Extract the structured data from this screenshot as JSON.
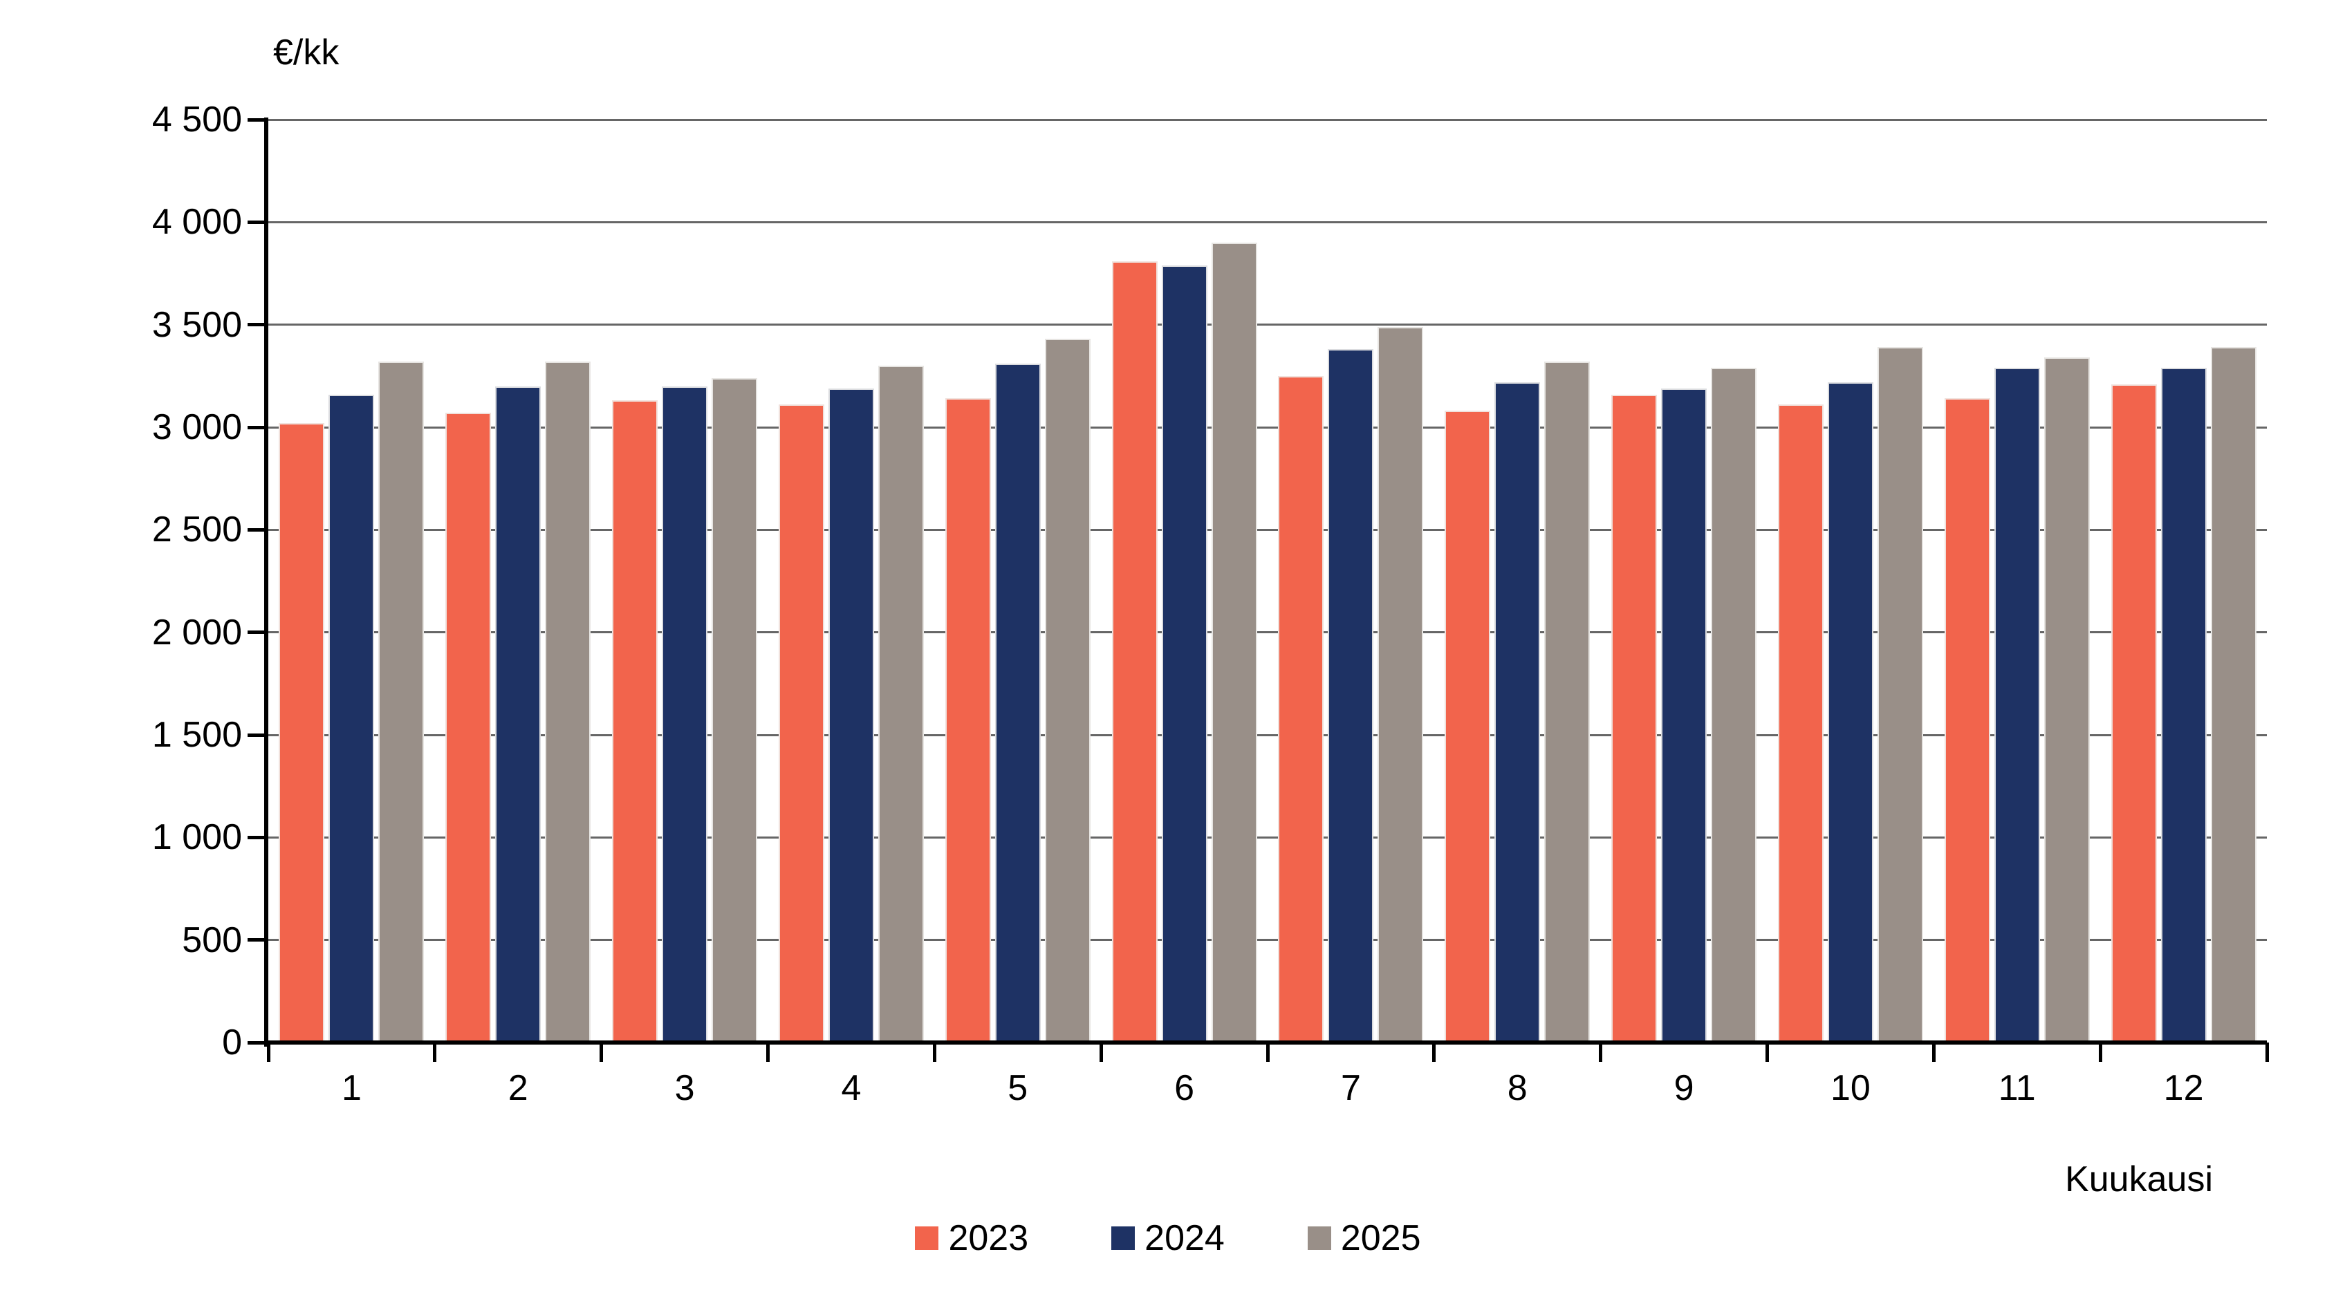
{
  "chart_data": {
    "type": "bar",
    "title": "",
    "ylabel": "€/kk",
    "xlabel": "Kuukausi",
    "categories": [
      "1",
      "2",
      "3",
      "4",
      "5",
      "6",
      "7",
      "8",
      "9",
      "10",
      "11",
      "12"
    ],
    "series": [
      {
        "name": "2023",
        "color": "#F2644C",
        "values": [
          3020,
          3070,
          3130,
          3110,
          3140,
          3810,
          3250,
          3080,
          3160,
          3110,
          3140,
          3210
        ]
      },
      {
        "name": "2024",
        "color": "#1E3264",
        "values": [
          3160,
          3200,
          3200,
          3190,
          3310,
          3790,
          3380,
          3220,
          3190,
          3220,
          3290,
          3290
        ]
      },
      {
        "name": "2025",
        "color": "#998F88",
        "values": [
          3320,
          3320,
          3240,
          3300,
          3430,
          3900,
          3490,
          3320,
          3290,
          3390,
          3340,
          3390
        ]
      }
    ],
    "ylim": [
      0,
      4500
    ],
    "ytick_step": 500,
    "grid": "horizontal",
    "legend_position": "bottom-center"
  },
  "axes": {
    "y_tick_labels": [
      "0",
      "500",
      "1 000",
      "1 500",
      "2 000",
      "2 500",
      "3 000",
      "3 500",
      "4 000",
      "4 500"
    ],
    "gridline_color": "#666666",
    "axis_color": "#000000"
  }
}
